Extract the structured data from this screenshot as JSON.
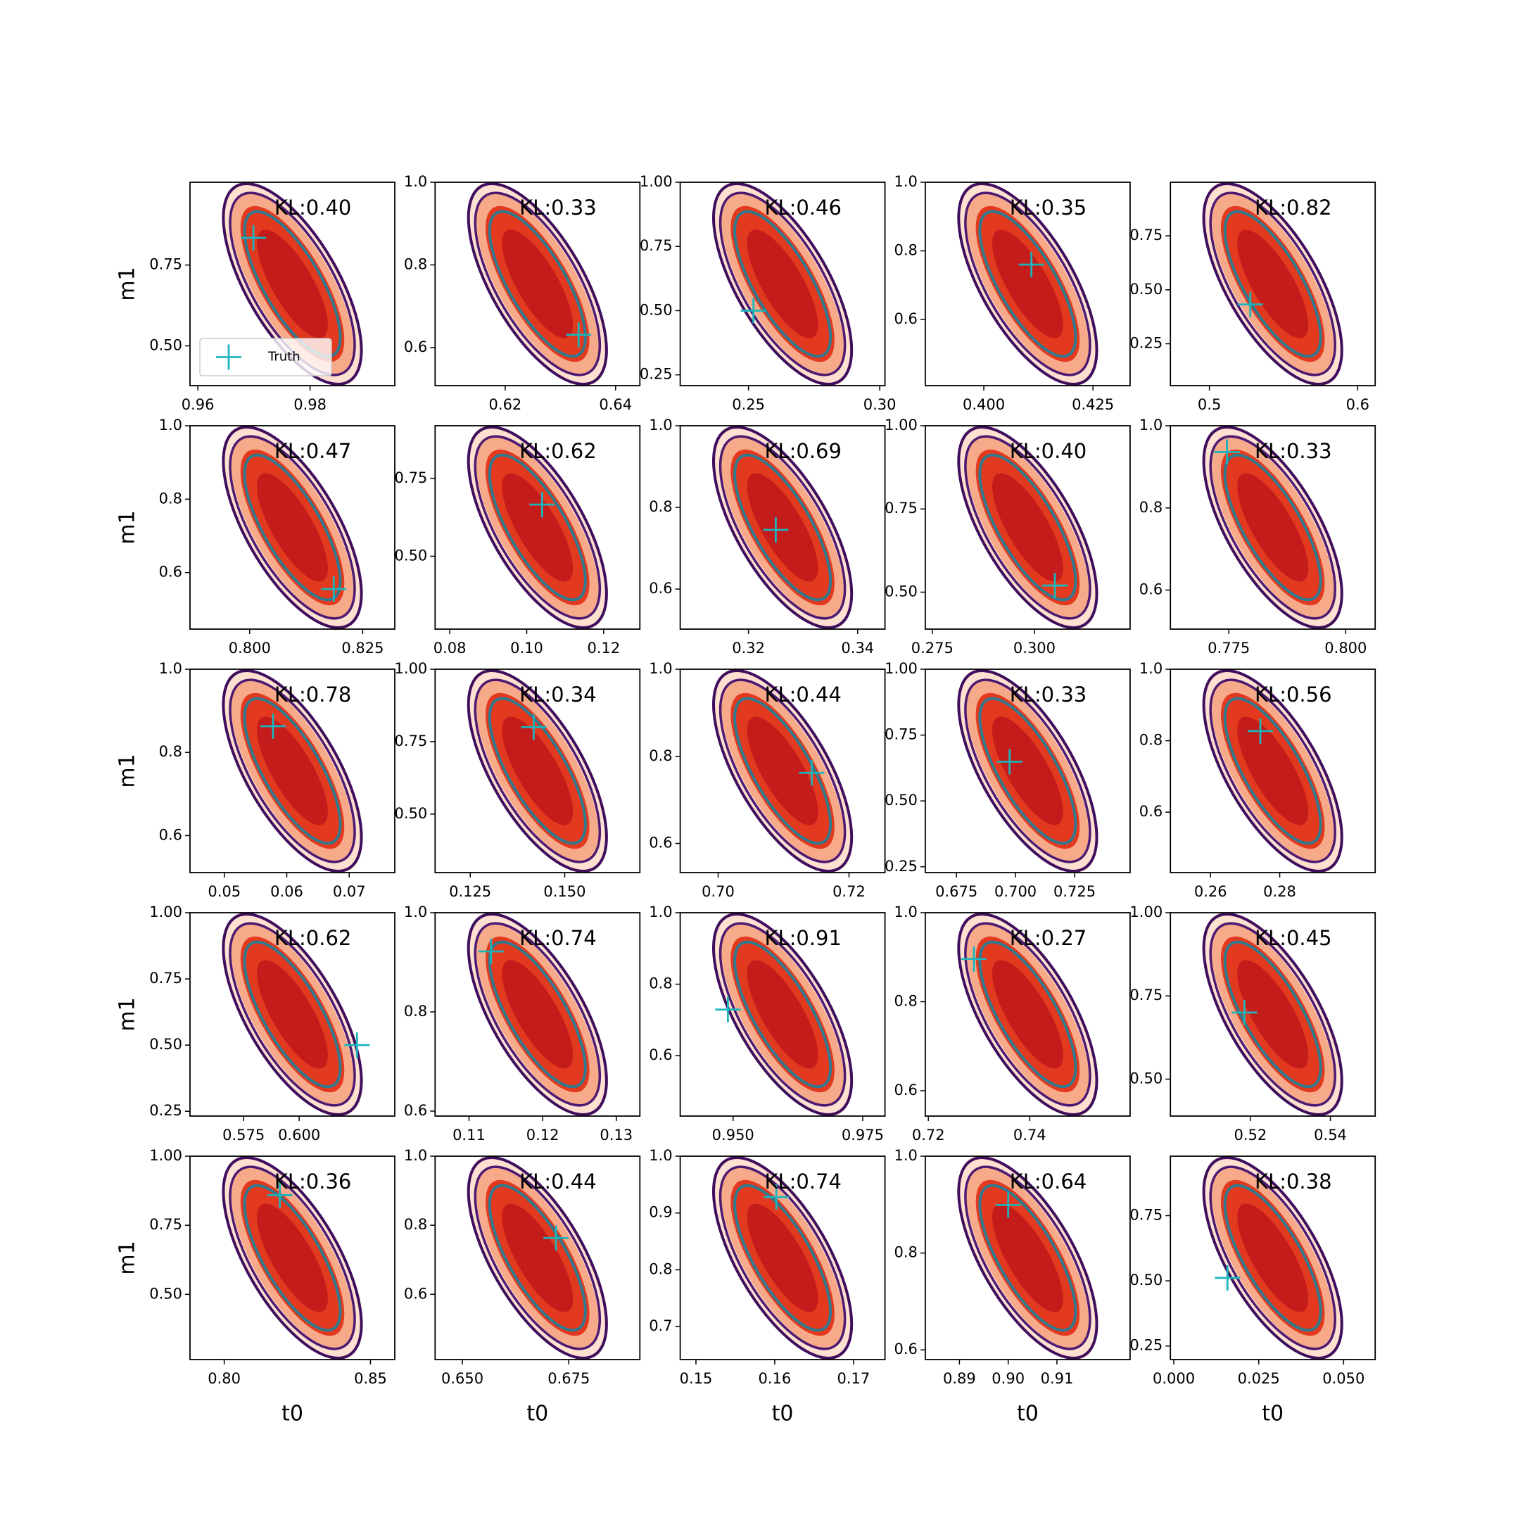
{
  "chart_data": [
    {
      "type": "contour",
      "annotation": "KL:0.40",
      "color": "#1bb5bb",
      "truth": {
        "x": 0.9699,
        "y": 0.834
      },
      "xlim": [
        0.9586,
        0.9951
      ],
      "ylim": [
        0.377,
        1.006
      ],
      "xticks": [
        0.96,
        0.98
      ],
      "yticks": [
        {
          "value": 0.5,
          "label": "0.50"
        },
        0.75
      ],
      "ylabel": "m1",
      "legend": {
        "label": "Truth",
        "loc": "lower left"
      }
    },
    {
      "type": "contour",
      "annotation": "KL:0.33",
      "color": "#1bb5bb",
      "truth": {
        "x": 0.6333,
        "y": 0.631
      },
      "xlim": [
        0.6073,
        0.6444
      ],
      "ylim": [
        0.508,
        1.0
      ],
      "xticks": [
        0.62,
        0.64
      ],
      "yticks": [
        0.6,
        0.8,
        {
          "value": 1,
          "label": "1.0"
        }
      ]
    },
    {
      "type": "contour",
      "annotation": "KL:0.46",
      "color": "#1bb5bb",
      "truth": {
        "x": 0.2519,
        "y": 0.5
      },
      "xlim": [
        0.224,
        0.302
      ],
      "ylim": [
        0.208,
        1.0
      ],
      "xticks": [
        0.25,
        {
          "value": 0.3,
          "label": "0.30"
        }
      ],
      "yticks": [
        0.25,
        {
          "value": 0.5,
          "label": "0.50"
        },
        0.75,
        {
          "value": 1,
          "label": "1.00"
        }
      ]
    },
    {
      "type": "contour",
      "annotation": "KL:0.35",
      "color": "#1bb5bb",
      "truth": {
        "x": 0.4109,
        "y": 0.76
      },
      "xlim": [
        0.3866,
        0.4335
      ],
      "ylim": [
        0.407,
        1.0
      ],
      "xticks": [
        {
          "value": 0.4,
          "label": "0.400"
        },
        0.425
      ],
      "yticks": [
        0.6,
        0.8,
        {
          "value": 1,
          "label": "1.0"
        }
      ]
    },
    {
      "type": "contour",
      "annotation": "KL:0.82",
      "color": "#1bb5bb",
      "truth": {
        "x": 0.5276,
        "y": 0.432
      },
      "xlim": [
        0.4737,
        0.6118
      ],
      "ylim": [
        0.056,
        0.998
      ],
      "xticks": [
        0.5,
        0.6
      ],
      "yticks": [
        0.25,
        {
          "value": 0.5,
          "label": "0.50"
        },
        0.75
      ]
    },
    {
      "type": "contour",
      "annotation": "KL:0.47",
      "color": "#1bb5bb",
      "truth": {
        "x": 0.8186,
        "y": 0.555
      },
      "xlim": [
        0.7868,
        0.8321
      ],
      "ylim": [
        0.446,
        1.0
      ],
      "xticks": [
        {
          "value": 0.8,
          "label": "0.800"
        },
        0.825
      ],
      "yticks": [
        0.6,
        0.8,
        {
          "value": 1,
          "label": "1.0"
        }
      ],
      "ylabel": "m1"
    },
    {
      "type": "contour",
      "annotation": "KL:0.62",
      "color": "#1bb5bb",
      "truth": {
        "x": 0.104,
        "y": 0.666
      },
      "xlim": [
        0.0762,
        0.1294
      ],
      "ylim": [
        0.266,
        0.919
      ],
      "xticks": [
        0.08,
        {
          "value": 0.1,
          "label": "0.10"
        },
        0.12
      ],
      "yticks": [
        {
          "value": 0.5,
          "label": "0.50"
        },
        0.75
      ]
    },
    {
      "type": "contour",
      "annotation": "KL:0.69",
      "color": "#1bb5bb",
      "truth": {
        "x": 0.325,
        "y": 0.745
      },
      "xlim": [
        0.3075,
        0.345
      ],
      "ylim": [
        0.502,
        1.0
      ],
      "xticks": [
        0.32,
        0.34
      ],
      "yticks": [
        0.6,
        0.8,
        {
          "value": 1,
          "label": "1.0"
        }
      ]
    },
    {
      "type": "contour",
      "annotation": "KL:0.40",
      "color": "#1bb5bb",
      "truth": {
        "x": 0.305,
        "y": 0.52
      },
      "xlim": [
        0.2733,
        0.3234
      ],
      "ylim": [
        0.389,
        1.0
      ],
      "xticks": [
        0.275,
        {
          "value": 0.3,
          "label": "0.300"
        }
      ],
      "yticks": [
        {
          "value": 0.5,
          "label": "0.50"
        },
        0.75,
        {
          "value": 1,
          "label": "1.00"
        }
      ]
    },
    {
      "type": "contour",
      "annotation": "KL:0.33",
      "color": "#1bb5bb",
      "truth": {
        "x": 0.7746,
        "y": 0.936
      },
      "xlim": [
        0.7625,
        0.8063
      ],
      "ylim": [
        0.505,
        1.0
      ],
      "xticks": [
        0.775,
        {
          "value": 0.8,
          "label": "0.800"
        }
      ],
      "yticks": [
        0.6,
        0.8,
        {
          "value": 1,
          "label": "1.0"
        }
      ]
    },
    {
      "type": "contour",
      "annotation": "KL:0.78",
      "color": "#1bb5bb",
      "truth": {
        "x": 0.0578,
        "y": 0.863
      },
      "xlim": [
        0.0445,
        0.0773
      ],
      "ylim": [
        0.511,
        1.0
      ],
      "xticks": [
        0.05,
        0.06,
        0.07
      ],
      "yticks": [
        0.6,
        0.8,
        {
          "value": 1,
          "label": "1.0"
        }
      ],
      "ylabel": "m1"
    },
    {
      "type": "contour",
      "annotation": "KL:0.34",
      "color": "#1bb5bb",
      "truth": {
        "x": 0.1418,
        "y": 0.8
      },
      "xlim": [
        0.1157,
        0.1699
      ],
      "ylim": [
        0.298,
        1.0
      ],
      "xticks": [
        0.125,
        {
          "value": 0.15,
          "label": "0.150"
        }
      ],
      "yticks": [
        {
          "value": 0.5,
          "label": "0.50"
        },
        0.75,
        {
          "value": 1,
          "label": "1.00"
        }
      ]
    },
    {
      "type": "contour",
      "annotation": "KL:0.44",
      "color": "#1bb5bb",
      "truth": {
        "x": 0.7143,
        "y": 0.762
      },
      "xlim": [
        0.6942,
        0.7255
      ],
      "ylim": [
        0.533,
        1.0
      ],
      "xticks": [
        {
          "value": 0.7,
          "label": "0.70"
        },
        0.72
      ],
      "yticks": [
        0.6,
        0.8,
        {
          "value": 1,
          "label": "1.0"
        }
      ]
    },
    {
      "type": "contour",
      "annotation": "KL:0.33",
      "color": "#1bb5bb",
      "truth": {
        "x": 0.6975,
        "y": 0.649
      },
      "xlim": [
        0.6618,
        0.7485
      ],
      "ylim": [
        0.228,
        1.0
      ],
      "xticks": [
        0.675,
        {
          "value": 0.7,
          "label": "0.700"
        },
        0.725
      ],
      "yticks": [
        0.25,
        {
          "value": 0.5,
          "label": "0.50"
        },
        0.75,
        {
          "value": 1,
          "label": "1.00"
        }
      ]
    },
    {
      "type": "contour",
      "annotation": "KL:0.56",
      "color": "#1bb5bb",
      "truth": {
        "x": 0.2744,
        "y": 0.827
      },
      "xlim": [
        0.2484,
        0.3076
      ],
      "ylim": [
        0.431,
        1.0
      ],
      "xticks": [
        0.26,
        0.28
      ],
      "yticks": [
        0.6,
        0.8,
        {
          "value": 1,
          "label": "1.0"
        }
      ]
    },
    {
      "type": "contour",
      "annotation": "KL:0.62",
      "color": "#1bb5bb",
      "truth": {
        "x": 0.626,
        "y": 0.5
      },
      "xlim": [
        0.5509,
        0.643
      ],
      "ylim": [
        0.232,
        1.0
      ],
      "xticks": [
        0.575,
        {
          "value": 0.6,
          "label": "0.600"
        }
      ],
      "yticks": [
        0.25,
        {
          "value": 0.5,
          "label": "0.50"
        },
        0.75,
        {
          "value": 1,
          "label": "1.00"
        }
      ],
      "ylabel": "m1"
    },
    {
      "type": "contour",
      "annotation": "KL:0.74",
      "color": "#1bb5bb",
      "truth": {
        "x": 0.113,
        "y": 0.922
      },
      "xlim": [
        0.1054,
        0.1332
      ],
      "ylim": [
        0.59,
        1.0
      ],
      "xticks": [
        0.11,
        0.12,
        0.13
      ],
      "yticks": [
        0.6,
        0.8,
        {
          "value": 1,
          "label": "1.0"
        }
      ]
    },
    {
      "type": "contour",
      "annotation": "KL:0.91",
      "color": "#1bb5bb",
      "truth": {
        "x": 0.949,
        "y": 0.729
      },
      "xlim": [
        0.9398,
        0.9793
      ],
      "ylim": [
        0.431,
        1.0
      ],
      "xticks": [
        {
          "value": 0.95,
          "label": "0.950"
        },
        0.975
      ],
      "yticks": [
        0.6,
        0.8,
        {
          "value": 1,
          "label": "1.0"
        }
      ]
    },
    {
      "type": "contour",
      "annotation": "KL:0.27",
      "color": "#1bb5bb",
      "truth": {
        "x": 0.729,
        "y": 0.896
      },
      "xlim": [
        0.7194,
        0.7598
      ],
      "ylim": [
        0.543,
        1.0
      ],
      "xticks": [
        0.72,
        0.74
      ],
      "yticks": [
        0.6,
        0.8,
        {
          "value": 1,
          "label": "1.0"
        }
      ]
    },
    {
      "type": "contour",
      "annotation": "KL:0.45",
      "color": "#1bb5bb",
      "truth": {
        "x": 0.5185,
        "y": 0.7
      },
      "xlim": [
        0.5,
        0.5512
      ],
      "ylim": [
        0.389,
        1.0
      ],
      "xticks": [
        0.52,
        0.54
      ],
      "yticks": [
        {
          "value": 0.5,
          "label": "0.50"
        },
        0.75,
        {
          "value": 1,
          "label": "1.00"
        }
      ]
    },
    {
      "type": "contour",
      "annotation": "KL:0.36",
      "color": "#1bb5bb",
      "truth": {
        "x": 0.819,
        "y": 0.859
      },
      "xlim": [
        0.7883,
        0.8583
      ],
      "ylim": [
        0.264,
        1.0
      ],
      "xticks": [
        {
          "value": 0.8,
          "label": "0.80"
        },
        0.85
      ],
      "yticks": [
        {
          "value": 0.5,
          "label": "0.50"
        },
        0.75,
        {
          "value": 1,
          "label": "1.00"
        }
      ],
      "ylabel": "m1",
      "xlabel": "t0"
    },
    {
      "type": "contour",
      "annotation": "KL:0.44",
      "color": "#1bb5bb",
      "truth": {
        "x": 0.672,
        "y": 0.763
      },
      "xlim": [
        0.6436,
        0.6917
      ],
      "ylim": [
        0.411,
        1.0
      ],
      "xticks": [
        {
          "value": 0.65,
          "label": "0.650"
        },
        0.675
      ],
      "yticks": [
        0.6,
        0.8,
        {
          "value": 1,
          "label": "1.0"
        }
      ],
      "xlabel": "t0"
    },
    {
      "type": "contour",
      "annotation": "KL:0.74",
      "color": "#1bb5bb",
      "truth": {
        "x": 0.1602,
        "y": 0.928
      },
      "xlim": [
        0.148,
        0.174
      ],
      "ylim": [
        0.642,
        1.0
      ],
      "xticks": [
        0.15,
        0.16,
        0.17
      ],
      "yticks": [
        0.7,
        0.8,
        0.9,
        {
          "value": 1,
          "label": "1.0"
        }
      ],
      "xlabel": "t0"
    },
    {
      "type": "contour",
      "annotation": "KL:0.64",
      "color": "#1bb5bb",
      "truth": {
        "x": 0.9,
        "y": 0.899
      },
      "xlim": [
        0.883,
        0.925
      ],
      "ylim": [
        0.58,
        1.0
      ],
      "xticks": [
        0.89,
        {
          "value": 0.9,
          "label": "0.90"
        },
        0.91
      ],
      "yticks": [
        0.6,
        0.8,
        {
          "value": 1,
          "label": "1.0"
        }
      ],
      "xlabel": "t0"
    },
    {
      "type": "contour",
      "annotation": "KL:0.38",
      "color": "#1bb5bb",
      "truth": {
        "x": 0.0158,
        "y": 0.511
      },
      "xlim": [
        -0.001,
        0.0593
      ],
      "ylim": [
        0.198,
        0.978
      ],
      "xticks": [
        {
          "value": 0,
          "label": "0.000"
        },
        0.025,
        {
          "value": 0.05,
          "label": "0.050"
        }
      ],
      "yticks": [
        0.25,
        {
          "value": 0.5,
          "label": "0.50"
        },
        0.75
      ],
      "xlabel": "t0"
    }
  ]
}
